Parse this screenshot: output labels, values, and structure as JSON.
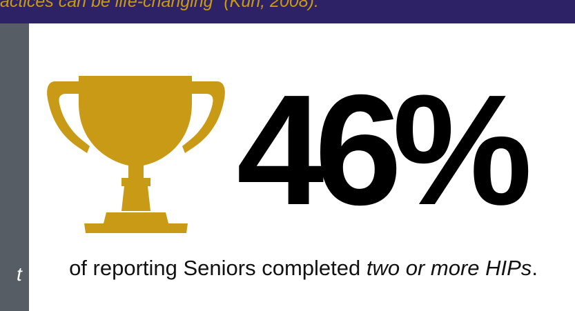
{
  "banner": {
    "text": "actices can be life-changing\" (Kuh, 2008).",
    "text_color": "#c99a16",
    "background": "#2e2266"
  },
  "left_strip": {
    "fragment": "t",
    "background": "#575d65"
  },
  "trophy": {
    "icon": "trophy-icon",
    "color": "#c99a16"
  },
  "stat": {
    "value": "46%"
  },
  "caption": {
    "prefix": "of reporting Seniors completed ",
    "emphasis": "two or more HIPs",
    "suffix": "."
  }
}
